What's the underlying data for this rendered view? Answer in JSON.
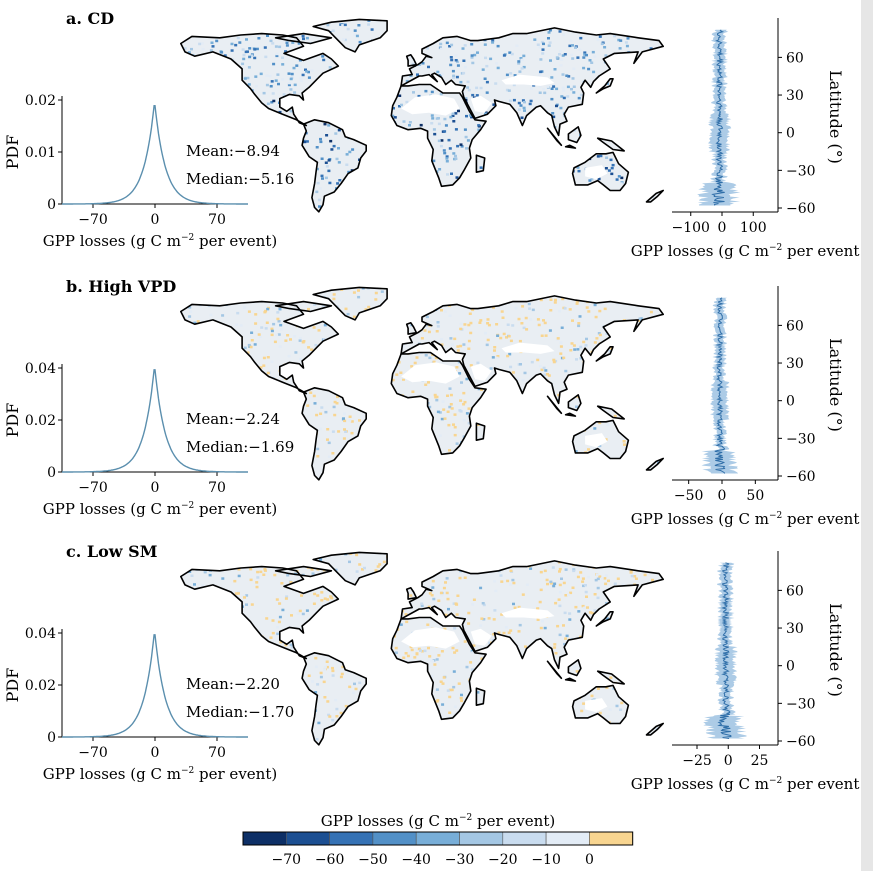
{
  "colors": {
    "pdf_line": "#5b8fae",
    "lat_line": "#2f6ea8",
    "lat_band": "#9ec2e2",
    "land_base": "#e9eef3",
    "desert": "#ffffff",
    "coast": "#000000"
  },
  "chart_data": [
    {
      "type": "line",
      "panel": "a. CD",
      "pdf": {
        "xlabel": "GPP losses (g C m",
        "xlabel_sup": "−2",
        "xlabel_end": " per event)",
        "ylabel": "PDF",
        "xlim": [
          -105,
          105
        ],
        "ylim": [
          0,
          0.02
        ],
        "xticks": [
          -70,
          0,
          70
        ],
        "yticks": [
          0,
          0.01,
          0.02
        ],
        "ytick_labels": [
          "0",
          "0.01",
          "0.02"
        ],
        "xtick_labels": [
          "−70",
          "0",
          "70"
        ],
        "peak": 0.0197,
        "mean_label": "Mean:−8.94",
        "median_label": "Median:−5.16"
      },
      "latitude": {
        "xlabel": "GPP losses (g C m",
        "xlabel_sup": "−2",
        "xlabel_end": " per event)",
        "ylabel": "Latitude (°)",
        "xlim": [
          -160,
          160
        ],
        "ylim": [
          -60,
          85
        ],
        "xticks": [
          -100,
          0,
          100
        ],
        "xtick_labels": [
          "−100",
          "0",
          "100"
        ],
        "yticks": [
          60,
          30,
          0,
          -30,
          -60
        ],
        "ytick_labels": [
          "60",
          "30",
          "0",
          "−30",
          "−60"
        ],
        "spread": 20
      },
      "map_intensity": "high"
    },
    {
      "type": "line",
      "panel": "b. High VPD",
      "pdf": {
        "xlabel": "GPP losses (g C m",
        "xlabel_sup": "−2",
        "xlabel_end": " per event)",
        "ylabel": "PDF",
        "xlim": [
          -105,
          105
        ],
        "ylim": [
          0,
          0.04
        ],
        "xticks": [
          -70,
          0,
          70
        ],
        "yticks": [
          0,
          0.02,
          0.04
        ],
        "ytick_labels": [
          "0",
          "0.02",
          "0.04"
        ],
        "xtick_labels": [
          "−70",
          "0",
          "70"
        ],
        "peak": 0.041,
        "mean_label": "Mean:−2.24",
        "median_label": "Median:−1.69"
      },
      "latitude": {
        "xlabel": "GPP losses (g C m",
        "xlabel_sup": "−2",
        "xlabel_end": " per event)",
        "ylabel": "Latitude (°)",
        "xlim": [
          -75,
          75
        ],
        "ylim": [
          -60,
          85
        ],
        "xticks": [
          -50,
          0,
          50
        ],
        "xtick_labels": [
          "−50",
          "0",
          "50"
        ],
        "yticks": [
          60,
          30,
          0,
          -30,
          -60
        ],
        "ytick_labels": [
          "60",
          "30",
          "0",
          "−30",
          "−60"
        ],
        "spread": 8
      },
      "map_intensity": "low"
    },
    {
      "type": "line",
      "panel": "c.  Low SM",
      "pdf": {
        "xlabel": "GPP losses (g C m",
        "xlabel_sup": "−2",
        "xlabel_end": " per event)",
        "ylabel": "PDF",
        "xlim": [
          -105,
          105
        ],
        "ylim": [
          0,
          0.04
        ],
        "xticks": [
          -70,
          0,
          70
        ],
        "yticks": [
          0,
          0.02,
          0.04
        ],
        "ytick_labels": [
          "0",
          "0.02",
          "0.04"
        ],
        "xtick_labels": [
          "−70",
          "0",
          "70"
        ],
        "peak": 0.041,
        "mean_label": "Mean:−2.20",
        "median_label": "Median:−1.70"
      },
      "latitude": {
        "xlabel": "GPP losses (g C m",
        "xlabel_sup": "−2",
        "xlabel_end": " per event)",
        "ylabel": "Latitude (°)",
        "xlim": [
          -45,
          35
        ],
        "ylim": [
          -60,
          85
        ],
        "xticks": [
          -25,
          0,
          25
        ],
        "xtick_labels": [
          "−25",
          "0",
          "25"
        ],
        "yticks": [
          60,
          30,
          0,
          -30,
          -60
        ],
        "ytick_labels": [
          "60",
          "30",
          "0",
          "−30",
          "−60"
        ],
        "spread": 5
      },
      "map_intensity": "low"
    }
  ],
  "colorbar": {
    "title": "GPP losses (g C m",
    "title_sup": "−2",
    "title_end": " per event)",
    "colors": [
      "#0d2f66",
      "#1c4f92",
      "#3572b5",
      "#5290c7",
      "#78aed8",
      "#a4c7e4",
      "#c9dcef",
      "#e3ecf6",
      "#f8d590"
    ],
    "tick_labels": [
      "−70",
      "−60",
      "−50",
      "−40",
      "−30",
      "−20",
      "−10",
      "0"
    ]
  }
}
